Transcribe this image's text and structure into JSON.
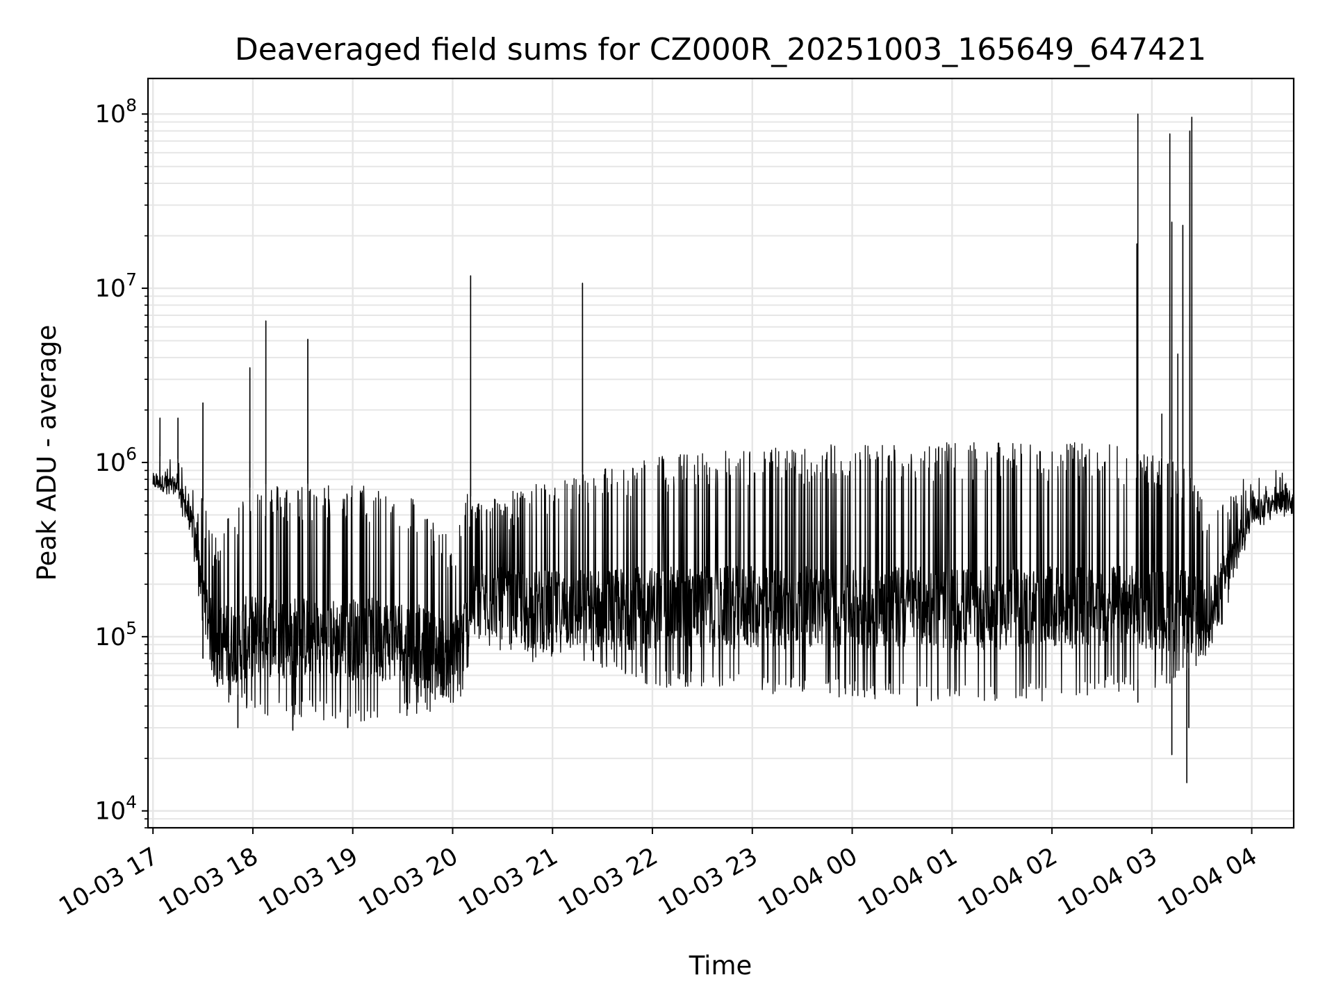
{
  "chart_data": {
    "type": "line",
    "title": "Deaveraged field sums for CZ000R_20251003_165649_647421",
    "xlabel": "Time",
    "ylabel": "Peak ADU - average",
    "yscale": "log",
    "ylim": [
      8000,
      160000000
    ],
    "xlim_hours": [
      -0.05,
      11.42
    ],
    "grid": true,
    "grid_which": "both",
    "line_color": "#000000",
    "x_ticks": [
      {
        "hour": 0,
        "label": "10-03 17"
      },
      {
        "hour": 1,
        "label": "10-03 18"
      },
      {
        "hour": 2,
        "label": "10-03 19"
      },
      {
        "hour": 3,
        "label": "10-03 20"
      },
      {
        "hour": 4,
        "label": "10-03 21"
      },
      {
        "hour": 5,
        "label": "10-03 22"
      },
      {
        "hour": 6,
        "label": "10-03 23"
      },
      {
        "hour": 7,
        "label": "10-04 00"
      },
      {
        "hour": 8,
        "label": "10-04 01"
      },
      {
        "hour": 9,
        "label": "10-04 02"
      },
      {
        "hour": 10,
        "label": "10-04 03"
      },
      {
        "hour": 11,
        "label": "10-04 04"
      }
    ],
    "y_ticks": [
      {
        "value": 10000,
        "base": "10",
        "exp": "4"
      },
      {
        "value": 100000,
        "base": "10",
        "exp": "5"
      },
      {
        "value": 1000000,
        "base": "10",
        "exp": "6"
      },
      {
        "value": 10000000,
        "base": "10",
        "exp": "7"
      },
      {
        "value": 100000000,
        "base": "10",
        "exp": "8"
      }
    ],
    "series": [
      {
        "name": "Peak ADU - average",
        "envelope": [
          {
            "hour": 0.0,
            "low": 700000,
            "high": 1100000
          },
          {
            "hour": 0.25,
            "low": 650000,
            "high": 1050000
          },
          {
            "hour": 0.4,
            "low": 350000,
            "high": 800000
          },
          {
            "hour": 0.5,
            "low": 130000,
            "high": 600000
          },
          {
            "hour": 0.6,
            "low": 55000,
            "high": 400000
          },
          {
            "hour": 1.0,
            "low": 42000,
            "high": 750000
          },
          {
            "hour": 2.0,
            "low": 38000,
            "high": 760000
          },
          {
            "hour": 2.55,
            "low": 40000,
            "high": 700000
          },
          {
            "hour": 3.0,
            "low": 45000,
            "high": 350000
          },
          {
            "hour": 3.15,
            "low": 55000,
            "high": 700000
          },
          {
            "hour": 3.2,
            "low": 110000,
            "high": 600000
          },
          {
            "hour": 4.0,
            "low": 75000,
            "high": 800000
          },
          {
            "hour": 5.0,
            "low": 60000,
            "high": 1100000
          },
          {
            "hour": 6.0,
            "low": 55000,
            "high": 1200000
          },
          {
            "hour": 7.0,
            "low": 52000,
            "high": 1300000
          },
          {
            "hour": 8.0,
            "low": 50000,
            "high": 1300000
          },
          {
            "hour": 9.0,
            "low": 50000,
            "high": 1300000
          },
          {
            "hour": 9.6,
            "low": 55000,
            "high": 1300000
          },
          {
            "hour": 10.3,
            "low": 60000,
            "high": 1000000
          },
          {
            "hour": 10.6,
            "low": 90000,
            "high": 500000
          },
          {
            "hour": 10.8,
            "low": 200000,
            "high": 700000
          },
          {
            "hour": 11.0,
            "low": 450000,
            "high": 900000
          },
          {
            "hour": 11.42,
            "low": 550000,
            "high": 950000
          }
        ],
        "spikes": [
          {
            "hour": 0.07,
            "value": 1800000
          },
          {
            "hour": 0.25,
            "value": 1800000
          },
          {
            "hour": 0.5,
            "value": 2200000
          },
          {
            "hour": 0.5,
            "value": 75000
          },
          {
            "hour": 0.85,
            "value": 30000
          },
          {
            "hour": 0.97,
            "value": 3500000
          },
          {
            "hour": 1.13,
            "value": 6500000
          },
          {
            "hour": 1.55,
            "value": 5100000
          },
          {
            "hour": 1.4,
            "value": 29000
          },
          {
            "hour": 1.95,
            "value": 30000
          },
          {
            "hour": 3.18,
            "value": 11800000
          },
          {
            "hour": 4.3,
            "value": 10700000
          },
          {
            "hour": 7.65,
            "value": 40000
          },
          {
            "hour": 9.85,
            "value": 18000000
          },
          {
            "hour": 9.86,
            "value": 100000000
          },
          {
            "hour": 9.86,
            "value": 42000
          },
          {
            "hour": 10.1,
            "value": 1900000
          },
          {
            "hour": 10.18,
            "value": 77000000
          },
          {
            "hour": 10.2,
            "value": 24000000
          },
          {
            "hour": 10.2,
            "value": 21000
          },
          {
            "hour": 10.26,
            "value": 4200000
          },
          {
            "hour": 10.31,
            "value": 23000000
          },
          {
            "hour": 10.35,
            "value": 14500
          },
          {
            "hour": 10.37,
            "value": 30000
          },
          {
            "hour": 10.38,
            "value": 80000000
          },
          {
            "hour": 10.4,
            "value": 96000000
          }
        ]
      }
    ]
  }
}
